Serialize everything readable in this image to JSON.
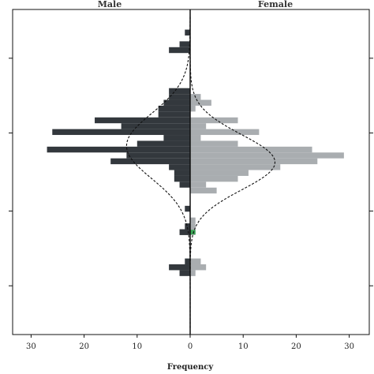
{
  "chart_data": {
    "type": "bar",
    "orientation": "horizontal-back-to-back",
    "title": "",
    "panels": [
      {
        "name": "Male",
        "side": "left",
        "color": "#33383d"
      },
      {
        "name": "Female",
        "side": "right",
        "color": "#a9adb0"
      }
    ],
    "xlabel": "Frequency",
    "ylabel": "",
    "x_ticks": [
      30,
      20,
      10,
      0,
      10,
      20,
      30
    ],
    "xlim": [
      -30,
      30
    ],
    "ylim": [
      0,
      100
    ],
    "y_tick_values": [
      15,
      38,
      62,
      85
    ],
    "bins": [
      {
        "y0": 92.0,
        "y1": 93.8,
        "male": 1,
        "female": 0
      },
      {
        "y0": 88.4,
        "y1": 90.2,
        "male": 2,
        "female": 0
      },
      {
        "y0": 86.6,
        "y1": 88.4,
        "male": 4,
        "female": 0
      },
      {
        "y0": 74.0,
        "y1": 75.8,
        "male": 4,
        "female": 0
      },
      {
        "y0": 72.2,
        "y1": 74.0,
        "male": 4,
        "female": 2
      },
      {
        "y0": 70.4,
        "y1": 72.2,
        "male": 5,
        "female": 4
      },
      {
        "y0": 68.6,
        "y1": 70.4,
        "male": 6,
        "female": 1
      },
      {
        "y0": 66.8,
        "y1": 68.6,
        "male": 6,
        "female": 0
      },
      {
        "y0": 65.0,
        "y1": 66.8,
        "male": 18,
        "female": 9
      },
      {
        "y0": 63.2,
        "y1": 65.0,
        "male": 13,
        "female": 3
      },
      {
        "y0": 61.4,
        "y1": 63.2,
        "male": 26,
        "female": 13
      },
      {
        "y0": 59.6,
        "y1": 61.4,
        "male": 5,
        "female": 2
      },
      {
        "y0": 57.8,
        "y1": 59.6,
        "male": 10,
        "female": 9
      },
      {
        "y0": 56.0,
        "y1": 57.8,
        "male": 27,
        "female": 23
      },
      {
        "y0": 54.2,
        "y1": 56.0,
        "male": 12,
        "female": 29
      },
      {
        "y0": 52.4,
        "y1": 54.2,
        "male": 15,
        "female": 24
      },
      {
        "y0": 50.6,
        "y1": 52.4,
        "male": 4,
        "female": 17
      },
      {
        "y0": 48.8,
        "y1": 50.6,
        "male": 3,
        "female": 11
      },
      {
        "y0": 47.0,
        "y1": 48.8,
        "male": 3,
        "female": 9
      },
      {
        "y0": 45.2,
        "y1": 47.0,
        "male": 2,
        "female": 3
      },
      {
        "y0": 43.4,
        "y1": 45.2,
        "male": 0,
        "female": 5
      },
      {
        "y0": 37.8,
        "y1": 39.6,
        "male": 1,
        "female": 0
      },
      {
        "y0": 34.2,
        "y1": 36.0,
        "male": 0,
        "female": 1
      },
      {
        "y0": 32.4,
        "y1": 34.2,
        "male": 1,
        "female": 1
      },
      {
        "y0": 30.6,
        "y1": 32.4,
        "male": 2,
        "female": 1
      },
      {
        "y0": 21.6,
        "y1": 23.4,
        "male": 1,
        "female": 2
      },
      {
        "y0": 19.8,
        "y1": 21.6,
        "male": 4,
        "female": 3
      },
      {
        "y0": 18.0,
        "y1": 19.8,
        "male": 2,
        "female": 1
      }
    ],
    "density_male": {
      "peak": 12,
      "mean": 58,
      "sd": 10
    },
    "density_female": {
      "peak": 16,
      "mean": 53,
      "sd": 8.5
    },
    "highlight": {
      "y0": 30.8,
      "y1": 32.2,
      "x0": 0,
      "x1": 1,
      "color": "#3aa655"
    },
    "grid": false,
    "legend": "none"
  }
}
